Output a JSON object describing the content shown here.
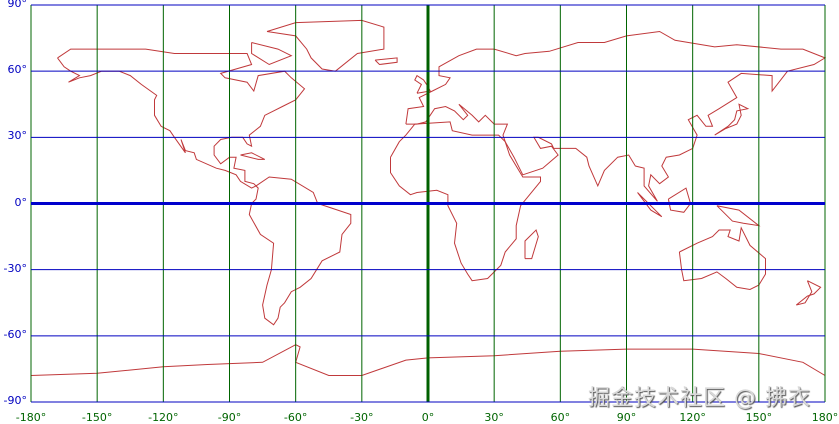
{
  "map": {
    "projection": "equirectangular",
    "lon_range": [
      -180,
      180
    ],
    "lat_range": [
      -90,
      90
    ],
    "grid_step_deg": 30,
    "lat_labels": [
      "90°",
      "60°",
      "30°",
      "0°",
      "-30°",
      "-60°",
      "-90°"
    ],
    "lon_labels": [
      "-180°",
      "-150°",
      "-120°",
      "-90°",
      "-60°",
      "-30°",
      "0°",
      "30°",
      "60°",
      "90°",
      "120°",
      "150°",
      "180°"
    ],
    "colors": {
      "coastline": "#c0393b",
      "meridian": "#006400",
      "parallel": "#0000c0",
      "equator": "#0000cc",
      "prime_meridian": "#006000"
    }
  },
  "watermark": "掘金技术社区 @ 拂衣"
}
